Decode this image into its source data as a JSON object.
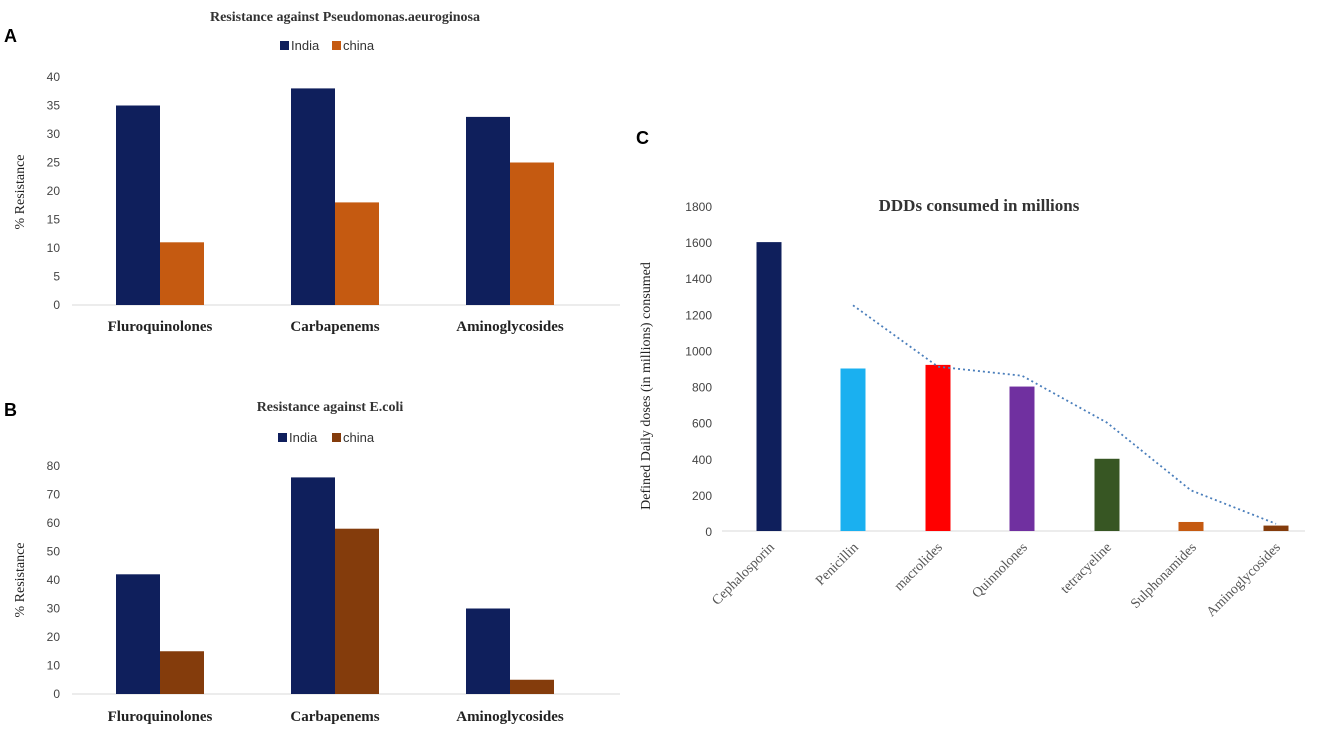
{
  "panels": {
    "a": "A",
    "b": "B",
    "c": "C"
  },
  "chart_data": [
    {
      "type": "bar",
      "title": "Resistance against Pseudomonas.aeuroginosa",
      "ylabel": "% Resistance",
      "xlabel": "",
      "categories": [
        "Fluroquinolones",
        "Carbapenems",
        "Aminoglycosides"
      ],
      "series": [
        {
          "name": "India",
          "color": "#0f1f5c",
          "values": [
            35,
            38,
            33
          ]
        },
        {
          "name": "china",
          "color": "#c55a11",
          "values": [
            11,
            18,
            25
          ]
        }
      ],
      "ylim": [
        0,
        40
      ],
      "yticks": [
        0,
        5,
        10,
        15,
        20,
        25,
        30,
        35,
        40
      ],
      "legend": "top-center",
      "grid": false
    },
    {
      "type": "bar",
      "title": "Resistance against E.coli",
      "ylabel": "% Resistance",
      "xlabel": "",
      "categories": [
        "Fluroquinolones",
        "Carbapenems",
        "Aminoglycosides"
      ],
      "series": [
        {
          "name": "India",
          "color": "#0f1f5c",
          "values": [
            42,
            76,
            30
          ]
        },
        {
          "name": "china",
          "color": "#843c0c",
          "values": [
            15,
            58,
            5
          ]
        }
      ],
      "ylim": [
        0,
        80
      ],
      "yticks": [
        0,
        10,
        20,
        30,
        40,
        50,
        60,
        70,
        80
      ],
      "legend": "top-center",
      "grid": false
    },
    {
      "type": "bar",
      "title": "DDDs consumed in millions",
      "ylabel": "Defined  Daily  doses  (in  millions)  consumed",
      "xlabel": "",
      "categories": [
        "Cephalosporin",
        "Penicillin",
        "macrolides",
        "Quinnolones",
        "tetracyeline",
        "Sulphonamides",
        "Aminoglycosides"
      ],
      "values": [
        1600,
        900,
        920,
        800,
        400,
        50,
        30
      ],
      "colors": [
        "#0f1f5c",
        "#1ab0f0",
        "#ff0000",
        "#7030a0",
        "#375623",
        "#c55a11",
        "#843c0c"
      ],
      "trendline": {
        "type": "moving-average",
        "color": "#4a7ebb",
        "values": [
          null,
          1250,
          910,
          860,
          600,
          225,
          40
        ]
      },
      "ylim": [
        0,
        1800
      ],
      "yticks": [
        0,
        200,
        400,
        600,
        800,
        1000,
        1200,
        1400,
        1600,
        1800
      ],
      "legend": "none",
      "grid": false
    }
  ]
}
